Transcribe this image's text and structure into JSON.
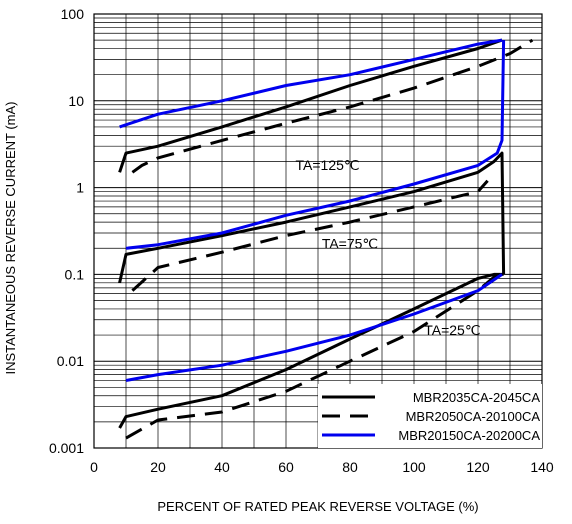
{
  "chart_data": {
    "type": "line",
    "xlabel": "PERCENT OF RATED PEAK REVERSE VOLTAGE (%)",
    "ylabel": "INSTANTANEOUS REVERSE CURRENT (mA)",
    "xlim": [
      0,
      140
    ],
    "ylim": [
      0.001,
      100
    ],
    "yscale": "log",
    "grid": true,
    "xticks": [
      "0",
      "20",
      "40",
      "60",
      "80",
      "100",
      "120",
      "140"
    ],
    "yticks": [
      "0.001",
      "0.01",
      "0.1",
      "1",
      "10",
      "100"
    ],
    "legend": {
      "position": "bottom-right",
      "entries": [
        {
          "label": "MBR2035CA-2045CA",
          "color": "#000000",
          "style": "solid"
        },
        {
          "label": "MBR2050CA-20100CA",
          "color": "#000000",
          "style": "dashed"
        },
        {
          "label": "MBR20150CA-20200CA",
          "color": "#0000ee",
          "style": "solid"
        }
      ]
    },
    "annotations": [
      {
        "text": "TA=125℃",
        "x": 73,
        "y": 1.6
      },
      {
        "text": "TA=75℃",
        "x": 80,
        "y": 0.2
      },
      {
        "text": "TA=25℃",
        "x": 112,
        "y": 0.02
      }
    ],
    "series": [
      {
        "color": "#000000",
        "style": "solid",
        "temperature": "TA=125℃",
        "x": [
          8,
          10,
          20,
          40,
          60,
          80,
          100,
          120,
          127.5,
          127.5
        ],
        "y": [
          1.5,
          2.5,
          3.0,
          5.0,
          8.5,
          15,
          25,
          40,
          50,
          50
        ]
      },
      {
        "color": "#000000",
        "style": "dashed",
        "temperature": "TA=125℃",
        "x": [
          12,
          15,
          20,
          40,
          60,
          80,
          100,
          120,
          130,
          137
        ],
        "y": [
          1.5,
          1.8,
          2.2,
          3.5,
          5.5,
          8.5,
          14,
          25,
          35,
          50
        ]
      },
      {
        "color": "#0000ee",
        "style": "solid",
        "temperature": "TA=125℃",
        "x": [
          8,
          20,
          40,
          60,
          80,
          100,
          120,
          127.5
        ],
        "y": [
          5,
          7,
          10,
          15,
          20,
          30,
          45,
          50
        ]
      },
      {
        "color": "#000000",
        "style": "solid",
        "temperature": "TA=75℃",
        "x": [
          8,
          10,
          20,
          40,
          60,
          80,
          100,
          120,
          125,
          127.5,
          128
        ],
        "y": [
          0.08,
          0.17,
          0.2,
          0.28,
          0.4,
          0.6,
          0.9,
          1.5,
          2.0,
          2.5,
          0.1
        ]
      },
      {
        "color": "#000000",
        "style": "dashed",
        "temperature": "TA=75℃",
        "x": [
          12,
          20,
          40,
          60,
          80,
          100,
          120,
          123
        ],
        "y": [
          0.065,
          0.12,
          0.18,
          0.28,
          0.4,
          0.6,
          0.9,
          1.2
        ]
      },
      {
        "color": "#0000ee",
        "style": "solid",
        "temperature": "TA=75℃",
        "x": [
          10,
          20,
          40,
          60,
          80,
          100,
          120,
          126,
          127.5,
          128
        ],
        "y": [
          0.2,
          0.22,
          0.3,
          0.48,
          0.7,
          1.1,
          1.8,
          2.5,
          3.5,
          50
        ]
      },
      {
        "color": "#000000",
        "style": "solid",
        "temperature": "TA=25℃",
        "x": [
          8,
          10,
          20,
          40,
          60,
          80,
          100,
          120,
          125,
          128
        ],
        "y": [
          0.0017,
          0.0023,
          0.0028,
          0.004,
          0.008,
          0.018,
          0.04,
          0.09,
          0.1,
          0.1
        ]
      },
      {
        "color": "#000000",
        "style": "dashed",
        "temperature": "TA=25℃",
        "x": [
          10,
          20,
          40,
          60,
          80,
          100,
          120,
          126
        ],
        "y": [
          0.0013,
          0.0021,
          0.0026,
          0.0045,
          0.01,
          0.022,
          0.065,
          0.1
        ]
      },
      {
        "color": "#0000ee",
        "style": "solid",
        "temperature": "TA=25℃",
        "x": [
          10,
          20,
          40,
          60,
          80,
          100,
          120,
          127.5
        ],
        "y": [
          0.006,
          0.007,
          0.009,
          0.013,
          0.02,
          0.035,
          0.065,
          0.1
        ]
      }
    ]
  }
}
